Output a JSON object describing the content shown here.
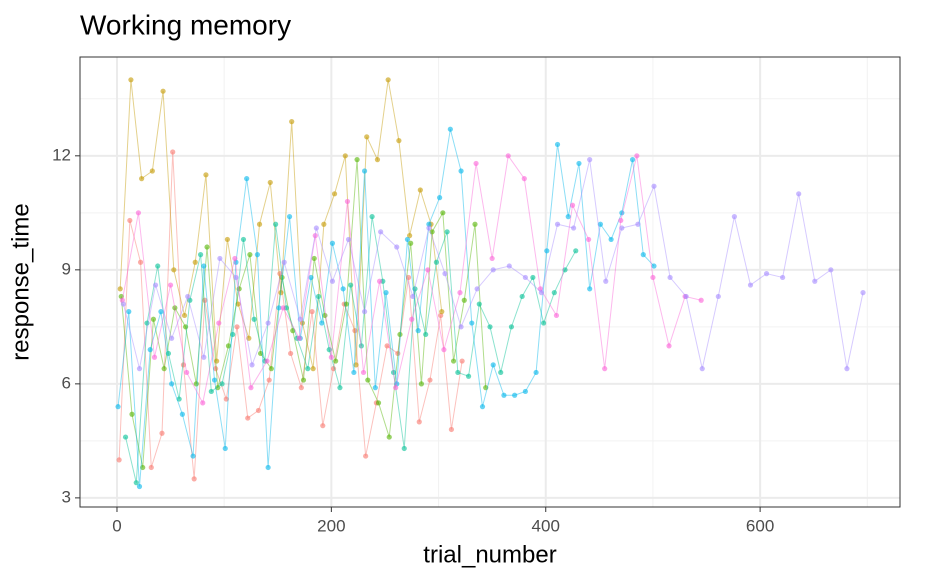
{
  "chart_data": {
    "type": "line",
    "title": "Working memory",
    "x_label": "trial_number",
    "y_label": "response_time",
    "xlim": [
      -34.5,
      730.5
    ],
    "ylim": [
      2.76,
      14.6
    ],
    "xticks": [
      0,
      200,
      400,
      600
    ],
    "yticks": [
      3,
      6,
      9,
      12
    ],
    "x_minor_ticks": [
      100,
      300,
      500,
      700
    ],
    "y_minor_ticks": [
      4.5,
      7.5,
      10.5,
      13.5
    ],
    "grid": true,
    "line_opacity": 0.45,
    "point_opacity": 0.6,
    "series": [
      {
        "color": "#F8766D",
        "x": [
          2,
          12,
          22,
          32,
          42,
          52,
          62,
          72,
          82,
          92,
          102,
          112,
          122,
          132,
          142,
          152,
          162,
          172,
          182,
          192,
          202,
          212,
          222,
          232,
          242,
          252,
          262,
          272,
          282,
          292,
          302,
          312,
          322
        ],
        "values": [
          4.0,
          10.3,
          9.2,
          3.8,
          4.7,
          12.1,
          6.5,
          3.5,
          8.2,
          6.4,
          5.6,
          7.5,
          5.1,
          5.3,
          6.1,
          8.9,
          6.8,
          5.9,
          7.9,
          4.9,
          6.4,
          8.1,
          7.4,
          4.1,
          5.5,
          7.0,
          6.8,
          8.8,
          5.0,
          6.1,
          7.8,
          4.8,
          6.6
        ]
      },
      {
        "color": "#C49A00",
        "x": [
          3,
          13,
          23,
          33,
          43,
          53,
          63,
          73,
          83,
          93,
          103,
          113,
          123,
          133,
          143,
          153,
          163,
          173,
          183,
          193,
          203,
          213,
          223,
          233,
          243,
          253,
          263,
          273,
          283,
          293,
          303
        ],
        "values": [
          8.5,
          14.0,
          11.4,
          11.6,
          13.7,
          9.0,
          7.8,
          9.2,
          11.5,
          6.6,
          9.8,
          8.1,
          7.2,
          10.2,
          11.3,
          8.4,
          12.9,
          7.6,
          6.4,
          10.2,
          11.0,
          12.0,
          6.5,
          12.5,
          11.9,
          14.0,
          12.4,
          9.9,
          11.1,
          10.2,
          7.9
        ]
      },
      {
        "color": "#53B400",
        "x": [
          4,
          14,
          24,
          34,
          44,
          54,
          64,
          74,
          84,
          94,
          104,
          114,
          124,
          134,
          144,
          154,
          164,
          174,
          184,
          194,
          204,
          214,
          224,
          234,
          244,
          254,
          264,
          274,
          284,
          294,
          304,
          314,
          324,
          334,
          344
        ],
        "values": [
          8.3,
          5.2,
          3.8,
          7.7,
          6.4,
          8.0,
          7.5,
          6.0,
          9.6,
          5.9,
          7.0,
          8.5,
          9.4,
          6.8,
          6.4,
          8.8,
          7.4,
          6.1,
          9.3,
          7.8,
          6.6,
          8.1,
          11.9,
          6.1,
          5.5,
          4.6,
          7.3,
          9.7,
          6.0,
          10.0,
          10.5,
          6.6,
          8.2,
          10.2,
          5.9
        ]
      },
      {
        "color": "#00C094",
        "x": [
          8,
          18,
          28,
          38,
          48,
          58,
          68,
          78,
          88,
          98,
          108,
          118,
          128,
          138,
          148,
          158,
          168,
          178,
          188,
          198,
          208,
          218,
          228,
          238,
          248,
          258,
          268,
          278,
          288,
          298,
          308,
          318,
          328,
          338,
          348,
          358,
          368,
          378,
          388,
          398,
          408,
          418,
          428
        ],
        "values": [
          4.6,
          3.4,
          7.6,
          9.1,
          6.8,
          5.6,
          8.2,
          9.4,
          5.8,
          6.0,
          7.3,
          9.8,
          7.7,
          6.6,
          10.2,
          8.0,
          7.2,
          6.4,
          8.3,
          6.9,
          5.9,
          8.6,
          7.0,
          10.4,
          8.7,
          6.3,
          4.3,
          8.5,
          7.3,
          9.2,
          10.0,
          6.3,
          6.2,
          8.1,
          7.5,
          6.3,
          7.5,
          8.3,
          8.8,
          7.6,
          8.4,
          9.0,
          9.5
        ]
      },
      {
        "color": "#00B6EB",
        "x": [
          1,
          11,
          21,
          31,
          41,
          51,
          61,
          71,
          81,
          91,
          101,
          111,
          121,
          131,
          141,
          151,
          161,
          171,
          181,
          191,
          201,
          211,
          221,
          231,
          241,
          251,
          261,
          271,
          281,
          291,
          301,
          311,
          321,
          331,
          341,
          351,
          361,
          371,
          381,
          391,
          401,
          411,
          421,
          431,
          441,
          451,
          461,
          471,
          481,
          491,
          501
        ],
        "values": [
          5.4,
          7.9,
          3.3,
          6.9,
          7.9,
          6.0,
          5.2,
          4.1,
          9.1,
          6.1,
          4.3,
          9.2,
          11.4,
          9.4,
          3.8,
          8.0,
          10.4,
          7.2,
          8.8,
          7.6,
          9.7,
          8.5,
          6.3,
          11.6,
          5.9,
          8.4,
          6.0,
          9.8,
          7.4,
          10.2,
          10.9,
          12.7,
          11.6,
          7.6,
          5.4,
          6.5,
          5.7,
          5.7,
          5.8,
          6.3,
          9.5,
          12.3,
          10.4,
          11.8,
          8.5,
          10.2,
          9.8,
          10.5,
          11.9,
          9.4,
          9.1
        ]
      },
      {
        "color": "#FB61D7",
        "x": [
          5,
          20,
          35,
          50,
          65,
          80,
          95,
          110,
          125,
          140,
          155,
          170,
          185,
          200,
          215,
          230,
          245,
          260,
          275,
          290,
          305,
          320,
          335,
          350,
          365,
          380,
          395,
          410,
          425,
          440,
          455,
          470,
          485,
          500,
          515,
          530,
          545
        ],
        "values": [
          8.2,
          10.5,
          6.7,
          8.6,
          6.3,
          5.5,
          7.6,
          9.3,
          5.9,
          6.6,
          8.0,
          7.2,
          9.9,
          6.7,
          10.8,
          6.3,
          8.7,
          5.9,
          7.7,
          9.0,
          6.9,
          8.4,
          11.8,
          9.3,
          12.0,
          11.4,
          8.5,
          7.8,
          10.7,
          9.8,
          6.4,
          10.3,
          12.0,
          8.8,
          7.0,
          8.3,
          8.2
        ]
      },
      {
        "color": "#A58AFF",
        "x": [
          6,
          21,
          36,
          51,
          66,
          81,
          96,
          111,
          126,
          141,
          156,
          171,
          186,
          201,
          216,
          231,
          246,
          261,
          276,
          291,
          306,
          321,
          336,
          351,
          366,
          381,
          396,
          411,
          426,
          441,
          456,
          471,
          486,
          501,
          516,
          531,
          546,
          561,
          576,
          591,
          606,
          621,
          636,
          651,
          666,
          681,
          696
        ],
        "values": [
          8.1,
          6.4,
          8.6,
          7.2,
          8.3,
          6.7,
          9.3,
          8.8,
          6.5,
          7.6,
          9.2,
          7.7,
          10.1,
          8.7,
          9.8,
          7.9,
          10.0,
          9.6,
          8.3,
          10.1,
          8.9,
          7.5,
          8.5,
          9.0,
          9.1,
          8.8,
          8.4,
          10.2,
          10.1,
          11.9,
          8.7,
          10.1,
          10.2,
          11.2,
          8.8,
          8.3,
          6.4,
          8.3,
          10.4,
          8.6,
          8.9,
          8.8,
          11.0,
          8.7,
          9.0,
          6.4,
          8.4
        ]
      }
    ]
  }
}
